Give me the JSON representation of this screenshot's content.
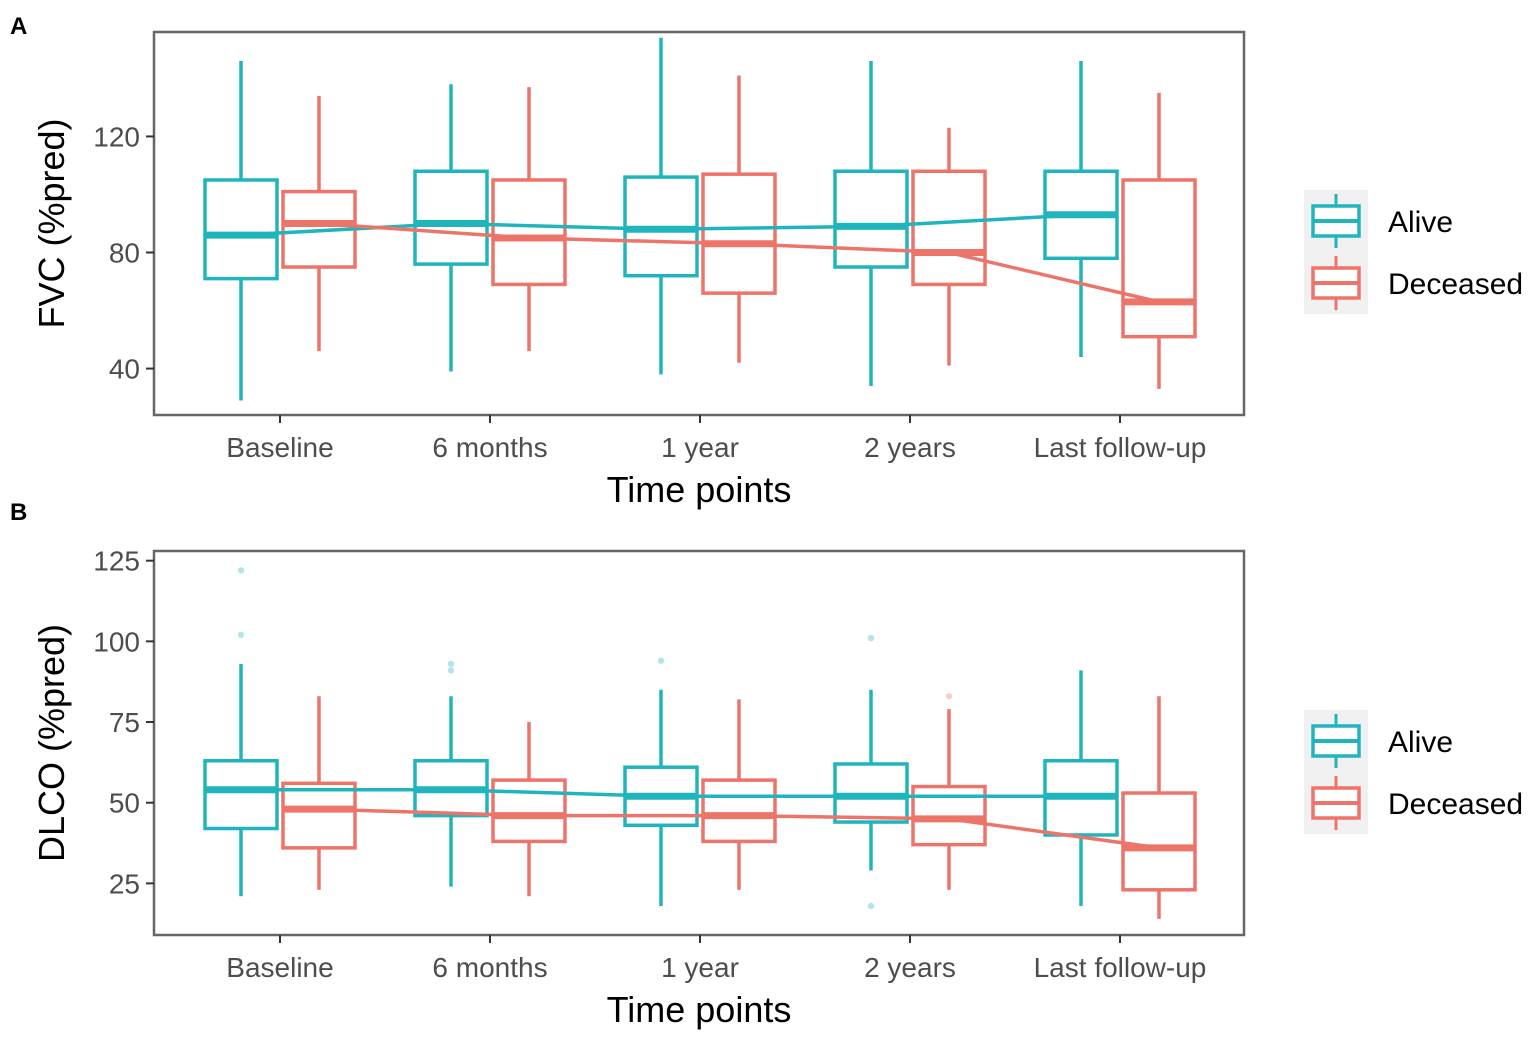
{
  "chart_data": [
    {
      "panel": "A",
      "type": "box",
      "ylabel": "FVC (%pred)",
      "xlabel": "Time points",
      "categories": [
        "Baseline",
        "6 months",
        "1 year",
        "2 years",
        "Last follow-up"
      ],
      "yticks": [
        40,
        80,
        120
      ],
      "ylim": [
        24,
        156
      ],
      "grid": false,
      "legend_position": "right",
      "series": [
        {
          "name": "Alive",
          "color": "#20b5bd",
          "boxes": [
            {
              "whisker_low": 29,
              "q1": 71,
              "median": 86,
              "q3": 105,
              "whisker_high": 146
            },
            {
              "whisker_low": 39,
              "q1": 76,
              "median": 90,
              "q3": 108,
              "whisker_high": 138
            },
            {
              "whisker_low": 38,
              "q1": 72,
              "median": 88,
              "q3": 106,
              "whisker_high": 154
            },
            {
              "whisker_low": 34,
              "q1": 75,
              "median": 89,
              "q3": 108,
              "whisker_high": 146
            },
            {
              "whisker_low": 44,
              "q1": 78,
              "median": 93,
              "q3": 108,
              "whisker_high": 146
            }
          ],
          "outliers": []
        },
        {
          "name": "Deceased",
          "color": "#ec7469",
          "boxes": [
            {
              "whisker_low": 46,
              "q1": 75,
              "median": 90,
              "q3": 101,
              "whisker_high": 134
            },
            {
              "whisker_low": 46,
              "q1": 69,
              "median": 85,
              "q3": 105,
              "whisker_high": 137
            },
            {
              "whisker_low": 42,
              "q1": 66,
              "median": 83,
              "q3": 107,
              "whisker_high": 141
            },
            {
              "whisker_low": 41,
              "q1": 69,
              "median": 80,
              "q3": 108,
              "whisker_high": 123
            },
            {
              "whisker_low": 33,
              "q1": 51,
              "median": 63,
              "q3": 105,
              "whisker_high": 135
            }
          ],
          "outliers": []
        }
      ]
    },
    {
      "panel": "B",
      "type": "box",
      "ylabel": "DLCO (%pred)",
      "xlabel": "Time points",
      "categories": [
        "Baseline",
        "6 months",
        "1 year",
        "2 years",
        "Last follow-up"
      ],
      "yticks": [
        25,
        50,
        75,
        100,
        125
      ],
      "ylim": [
        9,
        128
      ],
      "grid": false,
      "legend_position": "right",
      "series": [
        {
          "name": "Alive",
          "color": "#20b5bd",
          "boxes": [
            {
              "whisker_low": 21,
              "q1": 42,
              "median": 54,
              "q3": 63,
              "whisker_high": 93
            },
            {
              "whisker_low": 24,
              "q1": 46,
              "median": 54,
              "q3": 63,
              "whisker_high": 83
            },
            {
              "whisker_low": 18,
              "q1": 43,
              "median": 52,
              "q3": 61,
              "whisker_high": 85
            },
            {
              "whisker_low": 29,
              "q1": 44,
              "median": 52,
              "q3": 62,
              "whisker_high": 85
            },
            {
              "whisker_low": 18,
              "q1": 40,
              "median": 52,
              "q3": 63,
              "whisker_high": 91
            }
          ],
          "outliers": [
            {
              "category": "Baseline",
              "value": 122
            },
            {
              "category": "Baseline",
              "value": 102
            },
            {
              "category": "6 months",
              "value": 93
            },
            {
              "category": "6 months",
              "value": 91
            },
            {
              "category": "1 year",
              "value": 94
            },
            {
              "category": "2 years",
              "value": 101
            },
            {
              "category": "2 years",
              "value": 18
            }
          ]
        },
        {
          "name": "Deceased",
          "color": "#ec7469",
          "boxes": [
            {
              "whisker_low": 23,
              "q1": 36,
              "median": 48,
              "q3": 56,
              "whisker_high": 83
            },
            {
              "whisker_low": 21,
              "q1": 38,
              "median": 46,
              "q3": 57,
              "whisker_high": 75
            },
            {
              "whisker_low": 23,
              "q1": 38,
              "median": 46,
              "q3": 57,
              "whisker_high": 82
            },
            {
              "whisker_low": 23,
              "q1": 37,
              "median": 45,
              "q3": 55,
              "whisker_high": 79
            },
            {
              "whisker_low": 14,
              "q1": 23,
              "median": 36,
              "q3": 53,
              "whisker_high": 83
            }
          ],
          "outliers": [
            {
              "category": "2 years",
              "value": 83
            }
          ]
        }
      ]
    }
  ]
}
